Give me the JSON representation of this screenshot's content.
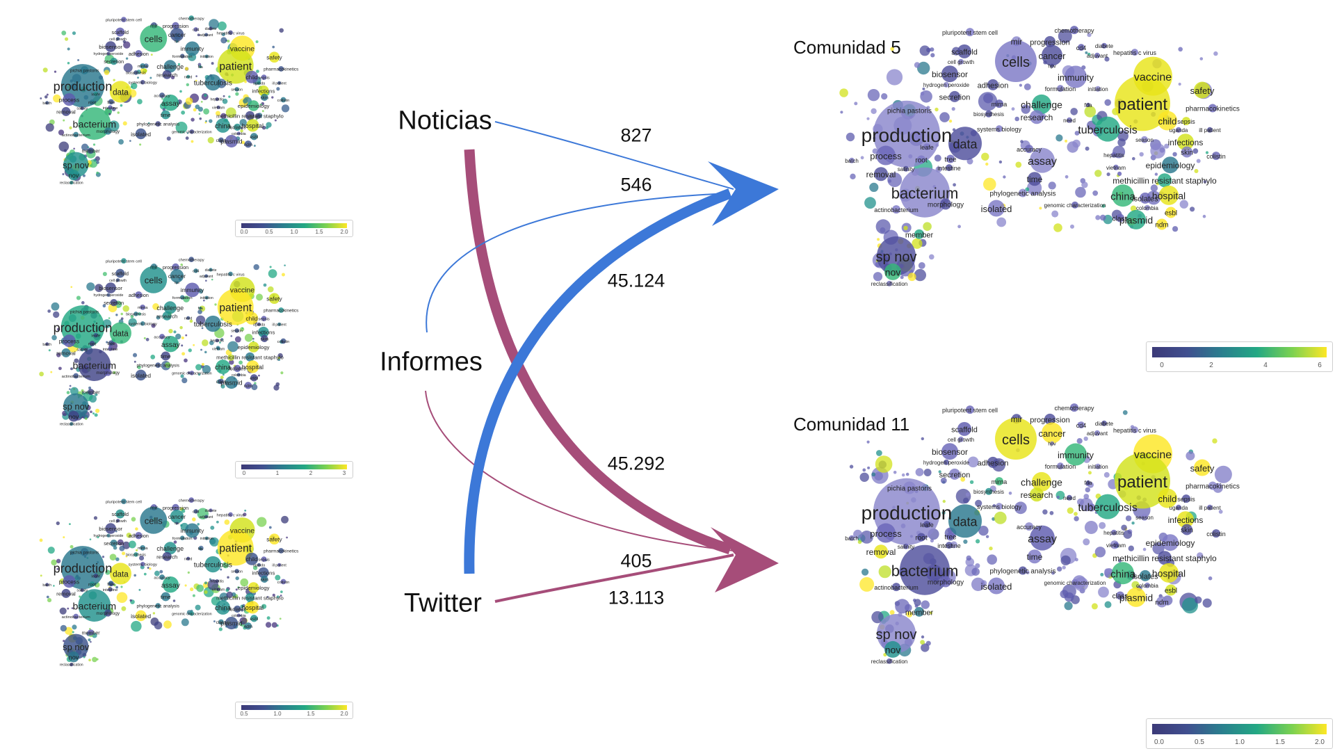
{
  "sources": [
    "Noticias",
    "Informes",
    "Twitter"
  ],
  "communities": [
    {
      "title": "Comunidad 5",
      "colorbar_ticks": [
        "0",
        "2",
        "4",
        "6"
      ]
    },
    {
      "title": "Comunidad 11",
      "colorbar_ticks": [
        "0.0",
        "0.5",
        "1.0",
        "1.5",
        "2.0"
      ]
    }
  ],
  "thumbnails": [
    {
      "colorbar_ticks": [
        "0.0",
        "0.5",
        "1.0",
        "1.5",
        "2.0"
      ]
    },
    {
      "colorbar_ticks": [
        "0",
        "1",
        "2",
        "3"
      ]
    },
    {
      "colorbar_ticks": [
        "0.5",
        "1.0",
        "1.5",
        "2.0"
      ]
    }
  ],
  "flows": [
    {
      "from": "Noticias",
      "to": "Comunidad 5",
      "value": "827"
    },
    {
      "from": "Informes",
      "to": "Comunidad 5",
      "value": "546"
    },
    {
      "from": "Twitter",
      "to": "Comunidad 5",
      "value": "45.124"
    },
    {
      "from": "Noticias",
      "to": "Comunidad 11",
      "value": "45.292"
    },
    {
      "from": "Informes",
      "to": "Comunidad 11",
      "value": "405"
    },
    {
      "from": "Twitter",
      "to": "Comunidad 11",
      "value": "13.113"
    }
  ],
  "colors": {
    "community5": "#3c78d8",
    "community11": "#a64d79"
  },
  "map_terms": [
    {
      "id": "pluripotent",
      "text": "pluripotent stem cell"
    },
    {
      "id": "chemotherapy",
      "text": "chemotherapy"
    },
    {
      "id": "mir",
      "text": "mir"
    },
    {
      "id": "progression",
      "text": "progression"
    },
    {
      "id": "cd4",
      "text": "cd4"
    },
    {
      "id": "diabete",
      "text": "diabete"
    },
    {
      "id": "scaffold",
      "text": "scaffold"
    },
    {
      "id": "cells",
      "text": "cells"
    },
    {
      "id": "cancer",
      "text": "cancer"
    },
    {
      "id": "adjuvant",
      "text": "adjuvant"
    },
    {
      "id": "hepatitis",
      "text": "hepatitis c virus"
    },
    {
      "id": "cellgrowth",
      "text": "cell growth"
    },
    {
      "id": "hpv",
      "text": "hpv"
    },
    {
      "id": "biosensor",
      "text": "biosensor"
    },
    {
      "id": "immunity",
      "text": "immunity"
    },
    {
      "id": "vaccine",
      "text": "vaccine"
    },
    {
      "id": "hydrogen",
      "text": "hydrogen peroxide"
    },
    {
      "id": "adhesion",
      "text": "adhesion"
    },
    {
      "id": "formulation",
      "text": "formulation"
    },
    {
      "id": "initiation",
      "text": "initiation"
    },
    {
      "id": "safety",
      "text": "safety"
    },
    {
      "id": "secretion",
      "text": "secretion"
    },
    {
      "id": "patient",
      "text": "patient"
    },
    {
      "id": "mirna",
      "text": "mirna"
    },
    {
      "id": "challenge",
      "text": "challenge"
    },
    {
      "id": "fda",
      "text": "fda"
    },
    {
      "id": "pharmaco",
      "text": "pharmacokinetics"
    },
    {
      "id": "pichia",
      "text": "pichia pastoris"
    },
    {
      "id": "biosynthesis",
      "text": "biosynthesis"
    },
    {
      "id": "research",
      "text": "research"
    },
    {
      "id": "need",
      "text": "need"
    },
    {
      "id": "sepsis",
      "text": "sepsis"
    },
    {
      "id": "child",
      "text": "child"
    },
    {
      "id": "production",
      "text": "production"
    },
    {
      "id": "systemsbio",
      "text": "systems biology"
    },
    {
      "id": "tuberculosis",
      "text": "tuberculosis"
    },
    {
      "id": "uganda",
      "text": "uganda"
    },
    {
      "id": "illpatient",
      "text": "ill patient"
    },
    {
      "id": "data",
      "text": "data"
    },
    {
      "id": "season",
      "text": "season"
    },
    {
      "id": "infections",
      "text": "infections"
    },
    {
      "id": "leafe",
      "text": "leafe"
    },
    {
      "id": "accuracy",
      "text": "accuracy"
    },
    {
      "id": "skin",
      "text": "skin"
    },
    {
      "id": "process",
      "text": "process"
    },
    {
      "id": "root",
      "text": "root"
    },
    {
      "id": "tree",
      "text": "tree"
    },
    {
      "id": "hepatitis2",
      "text": "hepatitis"
    },
    {
      "id": "colistin",
      "text": "colistin"
    },
    {
      "id": "assay",
      "text": "assay"
    },
    {
      "id": "batch",
      "text": "batch"
    },
    {
      "id": "intestine",
      "text": "intestine"
    },
    {
      "id": "vietnam",
      "text": "vietnam"
    },
    {
      "id": "epidemiology",
      "text": "epidemiology"
    },
    {
      "id": "removal",
      "text": "removal"
    },
    {
      "id": "salinity",
      "text": "salinity"
    },
    {
      "id": "time",
      "text": "time"
    },
    {
      "id": "mrsa",
      "text": "methicillin resistant staphylo"
    },
    {
      "id": "bacterium",
      "text": "bacterium"
    },
    {
      "id": "china",
      "text": "china"
    },
    {
      "id": "hospital",
      "text": "hospital"
    },
    {
      "id": "phylo",
      "text": "phylogenetic analysis"
    },
    {
      "id": "isolates",
      "text": "isolates"
    },
    {
      "id": "morphology",
      "text": "morphology"
    },
    {
      "id": "genomic",
      "text": "genomic characterization"
    },
    {
      "id": "colombia",
      "text": "colombia"
    },
    {
      "id": "esbl",
      "text": "esbl"
    },
    {
      "id": "isolated",
      "text": "isolated"
    },
    {
      "id": "actino",
      "text": "actinobacterium"
    },
    {
      "id": "class",
      "text": "class"
    },
    {
      "id": "plasmid",
      "text": "plasmid"
    },
    {
      "id": "ndm",
      "text": "ndm"
    },
    {
      "id": "member",
      "text": "member"
    },
    {
      "id": "spnov",
      "text": "sp nov"
    },
    {
      "id": "nov",
      "text": "nov"
    },
    {
      "id": "reclass",
      "text": "reclassification"
    }
  ]
}
